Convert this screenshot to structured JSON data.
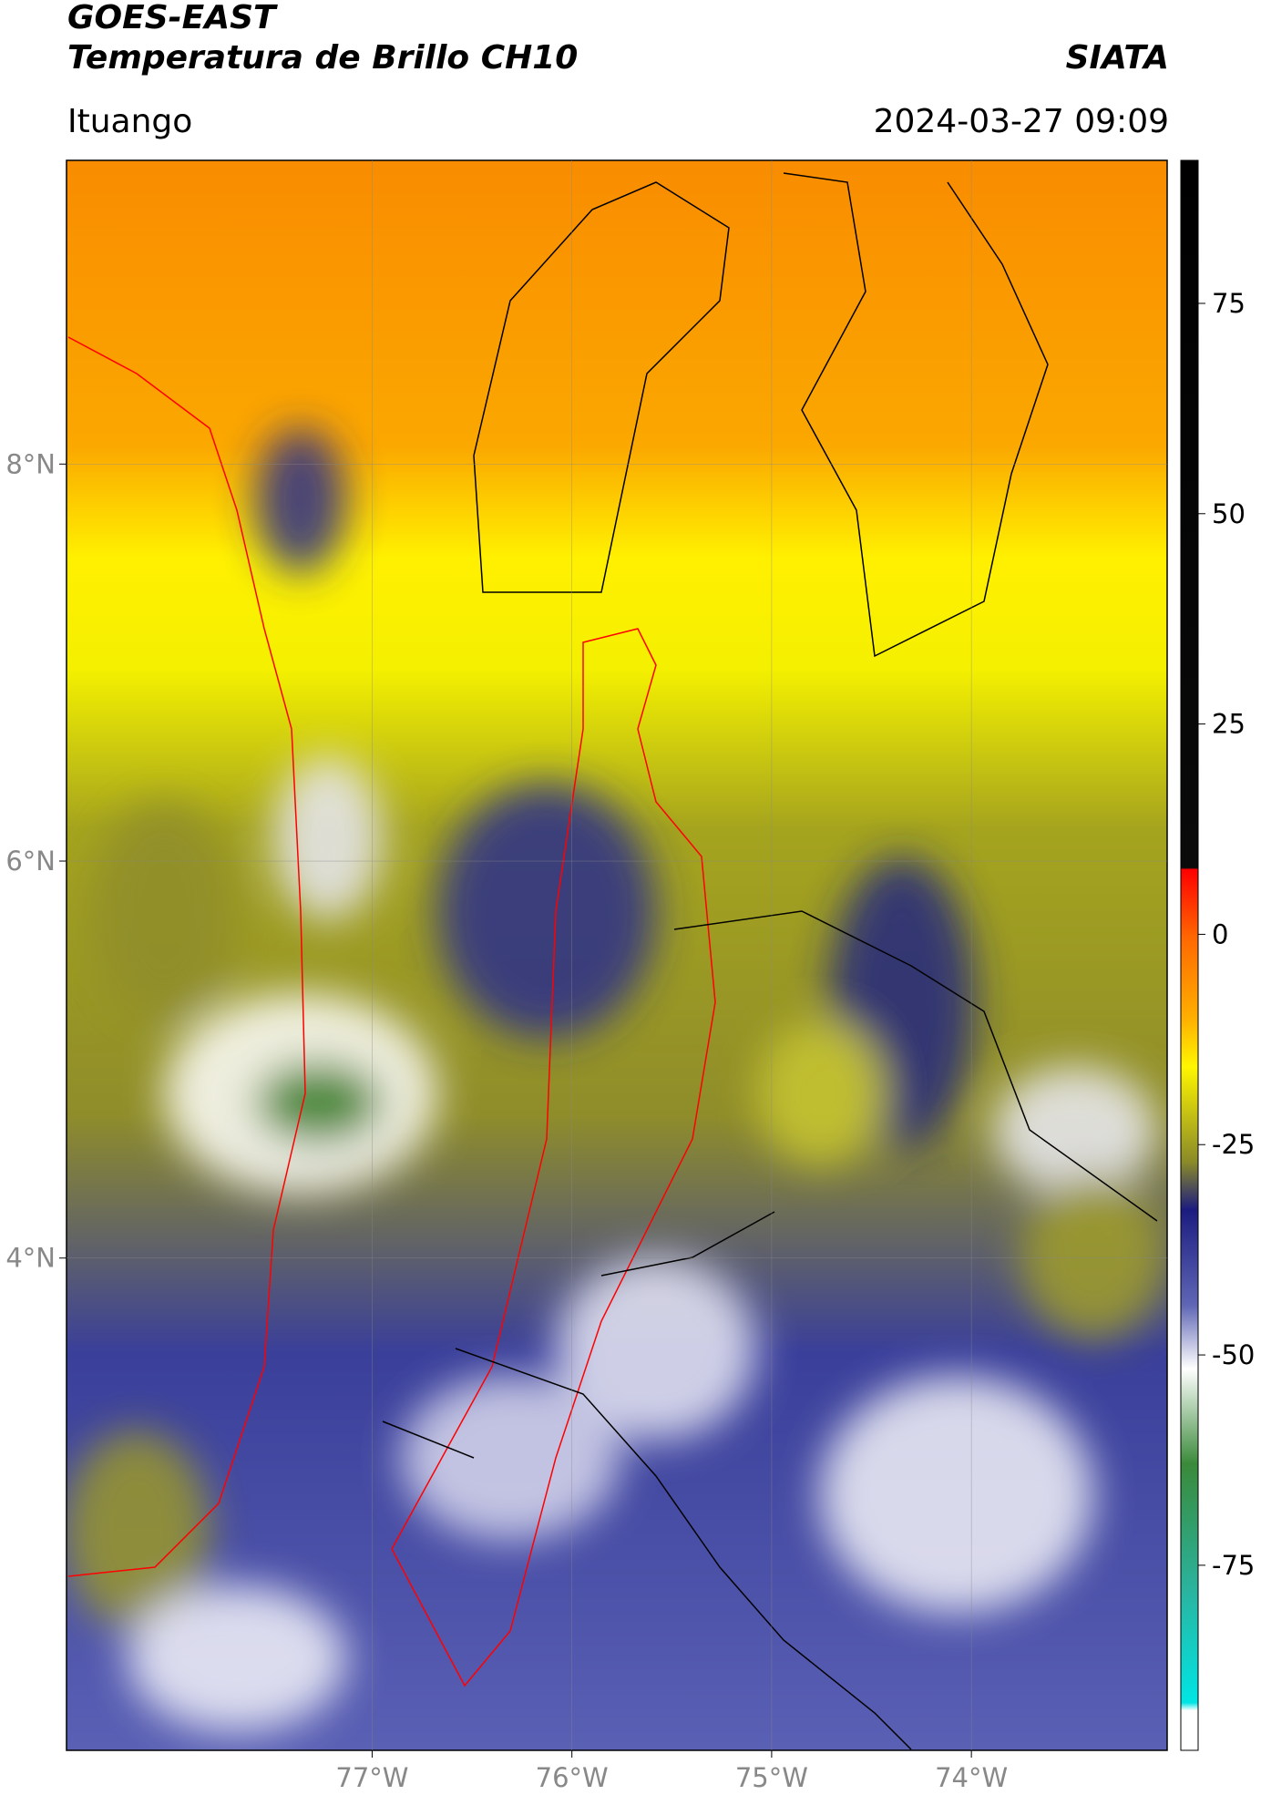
{
  "header": {
    "title": "GOES-EAST",
    "subtitle": "Temperatura de Brillo CH10",
    "agency": "SIATA",
    "location": "Ituango",
    "datetime": "2024-03-27 09:09"
  },
  "map": {
    "xlim": [
      -78.53,
      -73.02
    ],
    "ylim": [
      1.52,
      9.53
    ],
    "xticks": [
      {
        "value": -77,
        "label": "77°W"
      },
      {
        "value": -76,
        "label": "76°W"
      },
      {
        "value": -75,
        "label": "75°W"
      },
      {
        "value": -74,
        "label": "74°W"
      }
    ],
    "yticks": [
      {
        "value": 8,
        "label": "8°N"
      },
      {
        "value": 6,
        "label": "6°N"
      },
      {
        "value": 4,
        "label": "4°N"
      }
    ]
  },
  "colorbar": {
    "lim": [
      -97,
      92
    ],
    "ticks": [
      75,
      50,
      25,
      0,
      -25,
      -50,
      -75
    ]
  }
}
